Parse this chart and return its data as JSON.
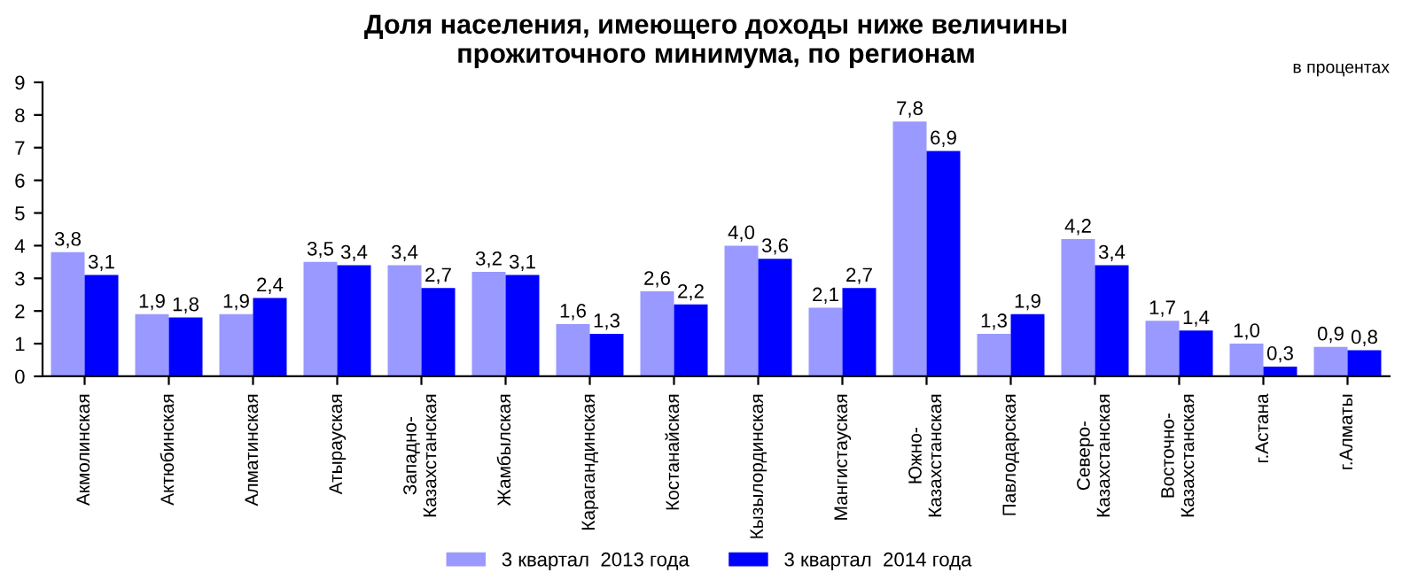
{
  "chart_data": {
    "type": "bar",
    "title": "Доля населения, имеющего доходы ниже величины\nпрожиточного минимума, по регионам",
    "annotations": [
      "в процентах"
    ],
    "categories": [
      "Акмолинская",
      "Актюбинская",
      "Алматинская",
      "Атырауская",
      "Западно-\nКазахстанская",
      "Жамбылская",
      "Карагандинская",
      "Костанайская",
      "Кызылординская",
      "Мангистауская",
      "Южно-\nКазахстанская",
      "Павлодарская",
      "Северо-\nКазахстанская",
      "Восточно-\nКазахстанская",
      "г.Астана",
      "г.Алматы"
    ],
    "series": [
      {
        "name": "3 квартал  2013 года",
        "color": "#9999ff",
        "values": [
          3.8,
          1.9,
          1.9,
          3.5,
          3.4,
          3.2,
          1.6,
          2.6,
          4.0,
          2.1,
          7.8,
          1.3,
          4.2,
          1.7,
          1.0,
          0.9
        ],
        "value_labels": [
          "3,8",
          "1,9",
          "1,9",
          "3,5",
          "3,4",
          "3,2",
          "1,6",
          "2,6",
          "4,0",
          "2,1",
          "7,8",
          "1,3",
          "4,2",
          "1,7",
          "1,0",
          "0,9"
        ]
      },
      {
        "name": "3 квартал  2014 года",
        "color": "#0000ff",
        "values": [
          3.1,
          1.8,
          2.4,
          3.4,
          2.7,
          3.1,
          1.3,
          2.2,
          3.6,
          2.7,
          6.9,
          1.9,
          3.4,
          1.4,
          0.3,
          0.8
        ],
        "value_labels": [
          "3,1",
          "1,8",
          "2,4",
          "3,4",
          "2,7",
          "3,1",
          "1,3",
          "2,2",
          "3,6",
          "2,7",
          "6,9",
          "1,9",
          "3,4",
          "1,4",
          "0,3",
          "0,8"
        ]
      }
    ],
    "ylim": [
      0,
      9
    ],
    "yticks": [
      0,
      1,
      2,
      3,
      4,
      5,
      6,
      7,
      8,
      9
    ],
    "grid": false,
    "legend": "bottom"
  }
}
